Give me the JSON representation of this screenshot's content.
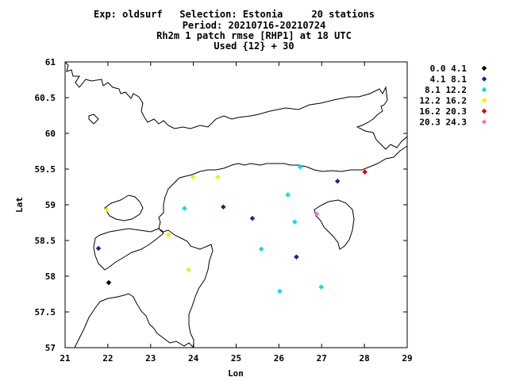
{
  "header": {
    "title_line": "Exp: oldsurf   Selection: Estonia     20 stations",
    "period": "Period: 20210716-20210724",
    "subtitle": "Rh2m 1 patch rmse [RHP1] at  18 UTC",
    "used": "Used {12} + 30"
  },
  "chart_data": {
    "type": "scatter",
    "title": "Rh2m 1 patch rmse [RHP1] at  18 UTC",
    "xlabel": "Lon",
    "ylabel": "Lat",
    "xlim": [
      21,
      29
    ],
    "ylim": [
      57,
      61
    ],
    "xticks": [
      21,
      22,
      23,
      24,
      25,
      26,
      27,
      28,
      29
    ],
    "yticks": [
      57,
      57.5,
      58,
      58.5,
      59,
      59.5,
      60,
      60.5,
      61
    ],
    "xtick_labels": [
      "21",
      "22",
      "23",
      "24",
      "25",
      "26",
      "27",
      "28",
      "29"
    ],
    "ytick_labels": [
      "57",
      "57.5",
      "58",
      "58.5",
      "59",
      "59.5",
      "60",
      "60.5",
      "61"
    ],
    "grid": false,
    "legend_position": "right",
    "legend": [
      {
        "label": "0.0 4.1",
        "color": "#000000"
      },
      {
        "label": "4.1 8.1",
        "color": "#1f1f9f"
      },
      {
        "label": "8.1 12.2",
        "color": "#00e0e0"
      },
      {
        "label": "12.2 16.2",
        "color": "#f0f000"
      },
      {
        "label": "16.2 20.3",
        "color": "#e00000"
      },
      {
        "label": "20.3 24.3",
        "color": "#e080e0"
      }
    ],
    "points": [
      {
        "lon": 22.02,
        "lat": 57.91,
        "cls": 0
      },
      {
        "lon": 21.78,
        "lat": 58.39,
        "cls": 1
      },
      {
        "lon": 24.7,
        "lat": 58.97,
        "cls": 1
      },
      {
        "lon": 25.38,
        "lat": 58.81,
        "cls": 1
      },
      {
        "lon": 26.41,
        "lat": 58.27,
        "cls": 1
      },
      {
        "lon": 27.37,
        "lat": 59.33,
        "cls": 1
      },
      {
        "lon": 23.79,
        "lat": 58.95,
        "cls": 2
      },
      {
        "lon": 25.59,
        "lat": 58.38,
        "cls": 2
      },
      {
        "lon": 26.02,
        "lat": 57.79,
        "cls": 2
      },
      {
        "lon": 26.21,
        "lat": 59.14,
        "cls": 2
      },
      {
        "lon": 26.37,
        "lat": 58.76,
        "cls": 2
      },
      {
        "lon": 26.5,
        "lat": 59.53,
        "cls": 2
      },
      {
        "lon": 26.99,
        "lat": 57.85,
        "cls": 2
      },
      {
        "lon": 21.97,
        "lat": 58.93,
        "cls": 3
      },
      {
        "lon": 23.42,
        "lat": 58.58,
        "cls": 3
      },
      {
        "lon": 23.89,
        "lat": 58.09,
        "cls": 3
      },
      {
        "lon": 23.99,
        "lat": 59.39,
        "cls": 3
      },
      {
        "lon": 24.57,
        "lat": 59.39,
        "cls": 3
      },
      {
        "lon": 28.01,
        "lat": 59.46,
        "cls": 4
      },
      {
        "lon": 26.89,
        "lat": 58.87,
        "cls": 5
      }
    ]
  }
}
